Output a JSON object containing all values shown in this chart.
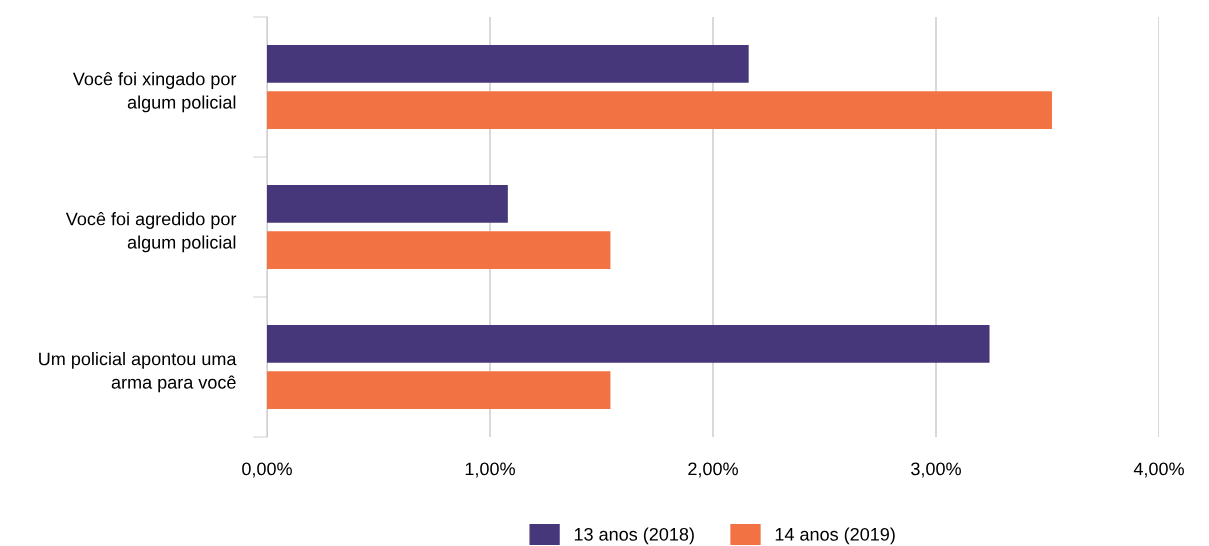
{
  "chart_data": {
    "type": "bar",
    "orientation": "horizontal",
    "categories": [
      "Você foi xingado por\nalgum policial",
      "Você foi agredido por\nalgum policial",
      "Um policial apontou uma\narma para você"
    ],
    "series": [
      {
        "name": "13 anos (2018)",
        "color": "#45377a",
        "values": [
          2.16,
          1.08,
          3.24
        ]
      },
      {
        "name": "14 anos (2019)",
        "color": "#f37244",
        "values": [
          3.52,
          1.54,
          1.54
        ]
      }
    ],
    "xlim": [
      0,
      4
    ],
    "xticks": [
      {
        "value": 0,
        "label": "0,00%"
      },
      {
        "value": 1,
        "label": "1,00%"
      },
      {
        "value": 2,
        "label": "2,00%"
      },
      {
        "value": 3,
        "label": "3,00%"
      },
      {
        "value": 4,
        "label": "4,00%"
      }
    ],
    "grid": "x",
    "legend": "bottom"
  }
}
